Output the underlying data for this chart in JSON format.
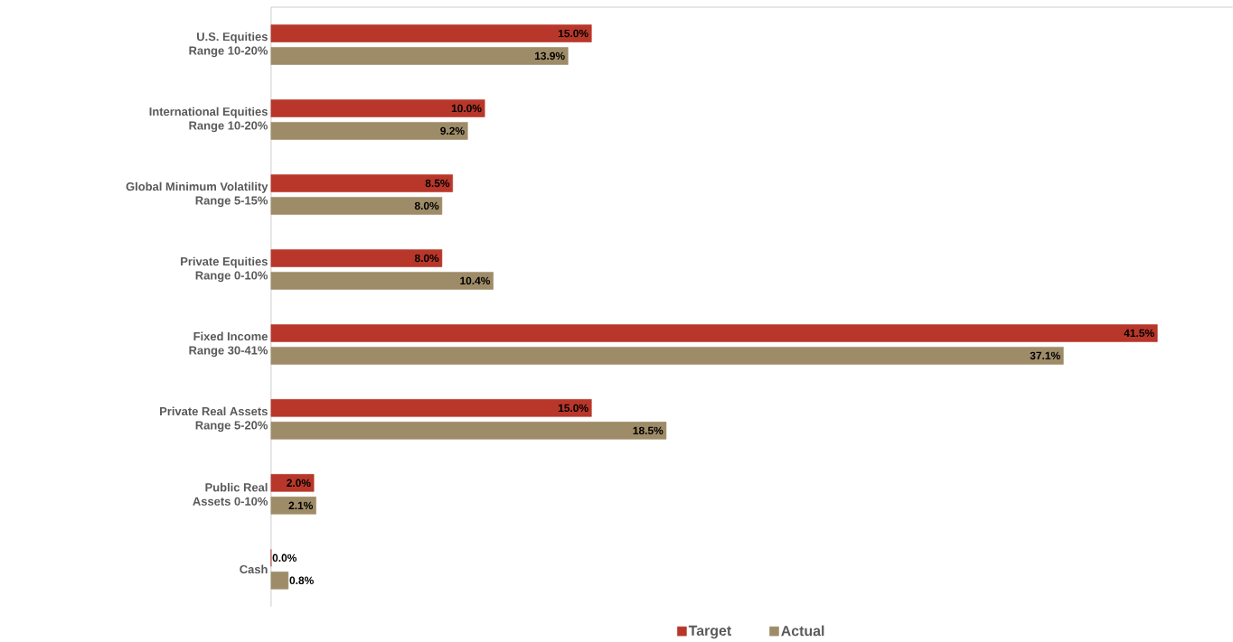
{
  "chart_data": {
    "type": "bar",
    "orientation": "horizontal",
    "categories": [
      "U.S. Equities Range 10-20%",
      "International Equities Range 10-20%",
      "Global Minimum Volatility Range 5-15%",
      "Private Equities Range 0-10%",
      "Fixed Income Range 30-41%",
      "Private Real Assets Range 5-20%",
      "Public Real Assets 0-10%",
      "Cash"
    ],
    "series": [
      {
        "name": "Target",
        "color": "#b8372a",
        "values": [
          15.0,
          10.0,
          8.5,
          8.0,
          41.5,
          15.0,
          2.0,
          0.0
        ],
        "value_labels": [
          "15.0%",
          "10.0%",
          "8.5%",
          "8.0%",
          "41.5%",
          "15.0%",
          "2.0%",
          "0.0%"
        ]
      },
      {
        "name": "Actual",
        "color": "#9e8c68",
        "values": [
          13.9,
          9.2,
          8.0,
          10.4,
          37.1,
          18.5,
          2.1,
          0.8
        ],
        "value_labels": [
          "13.9%",
          "9.2%",
          "8.0%",
          "10.4%",
          "37.1%",
          "18.5%",
          "2.1%",
          "0.8%"
        ]
      }
    ],
    "legend": "bottom",
    "tick_labels": "y"
  }
}
